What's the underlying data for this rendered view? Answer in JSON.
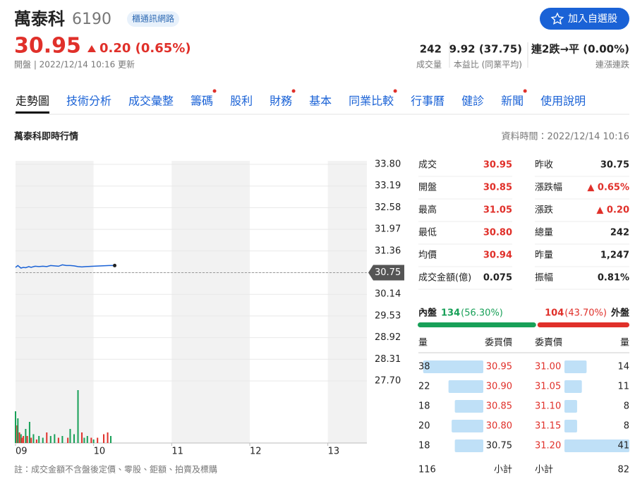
{
  "header": {
    "name": "萬泰科",
    "code": "6190",
    "tag": "櫃通訊網路",
    "button": "加入自選股",
    "price": "30.95",
    "change": "0.20 (0.65%)",
    "status": "開盤 | 2022/12/14 10:16 更新",
    "stats": [
      {
        "value": "242",
        "label": "成交量"
      },
      {
        "value": "9.92 (37.75)",
        "label": "本益比 (同業平均)"
      },
      {
        "value": "連2跌→平 (0.00%)",
        "label": "連漲連跌"
      }
    ]
  },
  "tabs": [
    {
      "label": "走勢圖",
      "active": true
    },
    {
      "label": "技術分析"
    },
    {
      "label": "成交彙整"
    },
    {
      "label": "籌碼",
      "dot": true
    },
    {
      "label": "股利"
    },
    {
      "label": "財務",
      "dot": true
    },
    {
      "label": "基本"
    },
    {
      "label": "同業比較",
      "dot": true
    },
    {
      "label": "行事曆"
    },
    {
      "label": "健診"
    },
    {
      "label": "新聞",
      "dot": true
    },
    {
      "label": "使用說明"
    }
  ],
  "section_title": "萬泰科即時行情",
  "data_time": "資料時間：2022/12/14 10:16",
  "chart": {
    "xlim": [
      9,
      13.5
    ],
    "xticks": [
      {
        "value": 9,
        "label": "09"
      },
      10,
      11,
      12,
      13
    ],
    "ylim": [
      27.7,
      33.8
    ],
    "yticks": [
      {
        "value": 33.8,
        "label": "33.80"
      },
      33.19,
      32.58,
      31.97,
      31.36,
      30.75,
      30.14,
      29.53,
      28.92,
      28.31,
      {
        "value": 27.7,
        "label": "27.70"
      }
    ],
    "reference": 30.75,
    "line": {
      "color": "#1a62d6",
      "x": [
        9.0,
        9.03,
        9.07,
        9.1,
        9.13,
        9.17,
        9.2,
        9.25,
        9.3,
        9.35,
        9.4,
        9.45,
        9.5,
        9.55,
        9.6,
        9.65,
        9.7,
        9.75,
        9.8,
        9.85,
        9.9,
        10.0,
        10.1,
        10.2,
        10.27
      ],
      "values": [
        30.9,
        30.95,
        30.88,
        30.9,
        30.89,
        30.92,
        30.9,
        30.93,
        30.92,
        30.93,
        30.92,
        30.95,
        30.94,
        30.93,
        30.97,
        30.95,
        30.95,
        30.94,
        30.92,
        30.91,
        30.92,
        30.93,
        30.94,
        30.95,
        30.95
      ]
    },
    "volume": {
      "vlim": [
        0,
        40
      ],
      "x": [
        9.0,
        9.02,
        9.03,
        9.05,
        9.07,
        9.08,
        9.1,
        9.13,
        9.15,
        9.18,
        9.2,
        9.23,
        9.27,
        9.3,
        9.35,
        9.4,
        9.45,
        9.5,
        9.55,
        9.6,
        9.67,
        9.7,
        9.75,
        9.8,
        9.85,
        9.88,
        9.92,
        9.97,
        10.0,
        10.05,
        10.13,
        10.18,
        10.22
      ],
      "values": [
        18,
        10,
        14,
        6,
        5,
        3,
        4,
        8,
        4,
        12,
        3,
        5,
        2,
        4,
        3,
        6,
        4,
        5,
        3,
        4,
        3,
        8,
        5,
        30,
        6,
        3,
        4,
        3,
        2,
        3,
        5,
        6,
        4
      ],
      "colors": [
        "#18a058",
        "#e0302a",
        "#18a058",
        "#e0302a",
        "#18a058",
        "#e0302a",
        "#e0302a",
        "#18a058",
        "#e0302a",
        "#18a058",
        "#e0302a",
        "#18a058",
        "#e0302a",
        "#18a058",
        "#18a058",
        "#e0302a",
        "#18a058",
        "#18a058",
        "#e0302a",
        "#18a058",
        "#e0302a",
        "#18a058",
        "#18a058",
        "#18a058",
        "#e0302a",
        "#18a058",
        "#18a058",
        "#e0302a",
        "#18a058",
        "#e0302a",
        "#e0302a",
        "#e0302a",
        "#18a058"
      ]
    }
  },
  "quote": {
    "left": [
      {
        "label": "成交",
        "value": "30.95",
        "color": "#e0302a"
      },
      {
        "label": "開盤",
        "value": "30.85",
        "color": "#e0302a"
      },
      {
        "label": "最高",
        "value": "31.05",
        "color": "#e0302a"
      },
      {
        "label": "最低",
        "value": "30.80",
        "color": "#e0302a"
      },
      {
        "label": "均價",
        "value": "30.94",
        "color": "#e0302a"
      },
      {
        "label": "成交金額(億)",
        "value": "0.075",
        "color": "#222222"
      }
    ],
    "right": [
      {
        "label": "昨收",
        "value": "30.75",
        "color": "#222222"
      },
      {
        "label": "漲跌幅",
        "value": "▲ 0.65%",
        "color": "#e0302a"
      },
      {
        "label": "漲跌",
        "value": "▲ 0.20",
        "color": "#e0302a"
      },
      {
        "label": "總量",
        "value": "242",
        "color": "#222222"
      },
      {
        "label": "昨量",
        "value": "1,247",
        "color": "#222222"
      },
      {
        "label": "振幅",
        "value": "0.81%",
        "color": "#222222"
      }
    ]
  },
  "inner_outer": {
    "inner_label": "內盤",
    "inner_volume": 134,
    "inner_percent": "(56.30%)",
    "outer_volume": 104,
    "outer_percent": "(43.70%)",
    "outer_label": "外盤"
  },
  "book": {
    "headers": [
      "量",
      "委買價",
      "委賣價",
      "量"
    ],
    "bids": [
      {
        "qty": 38,
        "price": "30.95",
        "color": "#e0302a"
      },
      {
        "qty": 22,
        "price": "30.90",
        "color": "#e0302a"
      },
      {
        "qty": 18,
        "price": "30.85",
        "color": "#e0302a"
      },
      {
        "qty": 20,
        "price": "30.80",
        "color": "#e0302a"
      },
      {
        "qty": 18,
        "price": "30.75",
        "color": "#222222"
      }
    ],
    "asks": [
      {
        "qty": 14,
        "price": "31.00",
        "color": "#e0302a"
      },
      {
        "qty": 11,
        "price": "31.05",
        "color": "#e0302a"
      },
      {
        "qty": 8,
        "price": "31.10",
        "color": "#e0302a"
      },
      {
        "qty": 8,
        "price": "31.15",
        "color": "#e0302a"
      },
      {
        "qty": 41,
        "price": "31.20",
        "color": "#e0302a"
      }
    ],
    "bid_total": 116,
    "bid_total_label": "小計",
    "ask_total_label": "小計",
    "ask_total": 82
  },
  "note": "註：成交金額不含盤後定價、零股、鉅額、拍賣及標購"
}
